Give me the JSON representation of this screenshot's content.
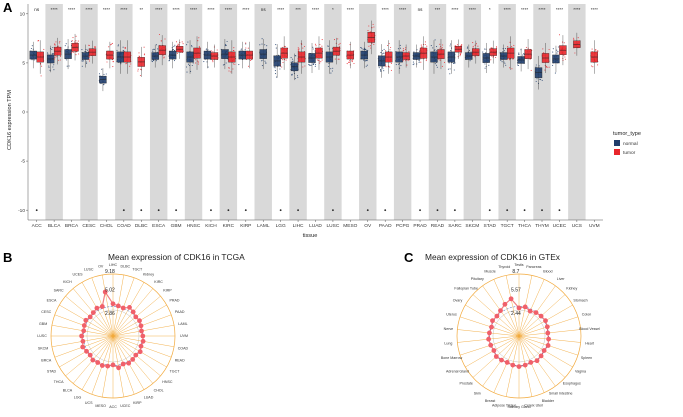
{
  "panels": {
    "a": "A",
    "b": "B",
    "c": "C"
  },
  "chart_data": [
    {
      "type": "box",
      "ylabel": "CDK16 expression TPM",
      "xlabel": "tissue",
      "ylim": [
        -11,
        11
      ],
      "yticks": [
        -10,
        -5,
        0,
        5,
        10
      ],
      "legend": {
        "title": "tumor_type",
        "entries": [
          {
            "name": "normal",
            "color": "#1f3d6b"
          },
          {
            "name": "tumor",
            "color": "#e8262b"
          }
        ],
        "position": "right"
      },
      "categories": [
        "ACC",
        "BLCA",
        "BRCA",
        "CESC",
        "CHOL",
        "COAD",
        "DLBC",
        "ESCA",
        "GBM",
        "HNSC",
        "KICH",
        "KIRC",
        "KIRP",
        "LAML",
        "LGG",
        "LIHC",
        "LUAD",
        "LUSC",
        "MESO",
        "OV",
        "PAAD",
        "PCPG",
        "PRAD",
        "READ",
        "SARC",
        "SKCM",
        "STAD",
        "TGCT",
        "THCA",
        "THYM",
        "UCEC",
        "UCS",
        "UVM"
      ],
      "significance": [
        "ns",
        "****",
        "****",
        "****",
        "****",
        "****",
        "**",
        "****",
        "****",
        "****",
        "****",
        "****",
        "****",
        "ns",
        "****",
        "***",
        "****",
        "*",
        "****",
        "",
        "****",
        "****",
        "ns",
        "***",
        "****",
        "****",
        "*",
        "****",
        "****",
        "****",
        "****",
        "****",
        "****"
      ],
      "normal_median": [
        5.8,
        5.4,
        5.9,
        5.7,
        3.3,
        5.6,
        null,
        5.7,
        5.8,
        5.6,
        5.8,
        5.9,
        5.8,
        5.9,
        5.2,
        4.6,
        5.5,
        5.6,
        null,
        5.8,
        5.2,
        5.6,
        5.7,
        5.6,
        5.6,
        5.7,
        5.5,
        5.7,
        5.3,
        4.0,
        5.4,
        null,
        null
      ],
      "tumor_median": [
        5.6,
        6.2,
        6.6,
        6.1,
        5.8,
        5.6,
        5.1,
        6.3,
        6.4,
        6.0,
        5.7,
        5.6,
        5.8,
        null,
        6.0,
        5.6,
        6.0,
        6.2,
        5.8,
        7.6,
        5.6,
        5.7,
        6.0,
        5.9,
        6.4,
        6.1,
        6.1,
        6.0,
        5.9,
        5.5,
        6.3,
        6.9,
        5.6
      ],
      "outlier_low_categories": [
        "ACC",
        "COAD",
        "DLBC",
        "ESCA",
        "GBM",
        "KICH",
        "KIRC",
        "KIRP",
        "LGG",
        "LIHC",
        "LUSC",
        "OV",
        "PAAD",
        "PRAD",
        "READ",
        "SARC",
        "STAD",
        "TGCT",
        "THCA",
        "THYM",
        "UCEC"
      ],
      "outlier_low_value": -10
    },
    {
      "type": "radar",
      "title": "Mean expression of CDK16 in TCGA",
      "ring_values": [
        "9.18",
        "5.02",
        "2.86"
      ],
      "labels": [
        "LIHC",
        "DLBC",
        "TGCT",
        "Kidney",
        "KIRC",
        "KIRP",
        "PRAD",
        "PAAD",
        "LAML",
        "UVM",
        "COAD",
        "READ",
        "TGCT",
        "HNSC",
        "CHOL",
        "LUAD",
        "KIRP",
        "UCEC",
        "ACC",
        "MESO",
        "UCS",
        "LGG",
        "BLCA",
        "THCA",
        "STAD",
        "BRCA",
        "SKCM",
        "LUSC",
        "GBM",
        "CESC",
        "ESCA",
        "SARC",
        "KICH",
        "UCES",
        "LUSC",
        "OV"
      ],
      "values": [
        5.9,
        5.7,
        5.6,
        6.0,
        5.8,
        5.6,
        5.7,
        5.6,
        5.5,
        5.6,
        5.7,
        5.6,
        5.8,
        5.6,
        5.7,
        5.8,
        5.6,
        5.9,
        5.5,
        5.7,
        5.8,
        5.7,
        5.8,
        5.6,
        5.7,
        5.9,
        5.7,
        5.8,
        5.6,
        5.7,
        5.8,
        5.6,
        5.7,
        5.9,
        5.8,
        7.4
      ],
      "grid": true
    },
    {
      "type": "radar",
      "title": "Mean expression of CDK16 in GTEx",
      "ring_values": [
        "8.7",
        "5.57",
        "2.44"
      ],
      "labels": [
        "Testis",
        "Pancreas",
        "Blood",
        "Liver",
        "Kidney",
        "Stomach",
        "Colon",
        "Blood Vessel",
        "Heart",
        "Spleen",
        "Vagina",
        "Esophagus",
        "Small Intestine",
        "Bladder",
        "Cervix Uteri",
        "Salivary Gland",
        "Adipose Tissue",
        "Breast",
        "Skin",
        "Prostate",
        "Adrenal Gland",
        "Bone Marrow",
        "Lung",
        "Nerve",
        "Uterus",
        "Ovary",
        "Fallopian Tube",
        "Pituitary",
        "Muscle",
        "Thyroid"
      ],
      "values": [
        5.4,
        5.6,
        5.3,
        5.5,
        5.6,
        5.7,
        5.6,
        5.5,
        5.6,
        5.7,
        5.5,
        5.6,
        5.7,
        5.5,
        5.6,
        5.7,
        5.6,
        5.5,
        5.6,
        5.7,
        5.5,
        5.6,
        5.7,
        5.6,
        5.5,
        5.7,
        5.6,
        5.8,
        6.2,
        6.6
      ],
      "grid": true
    }
  ]
}
